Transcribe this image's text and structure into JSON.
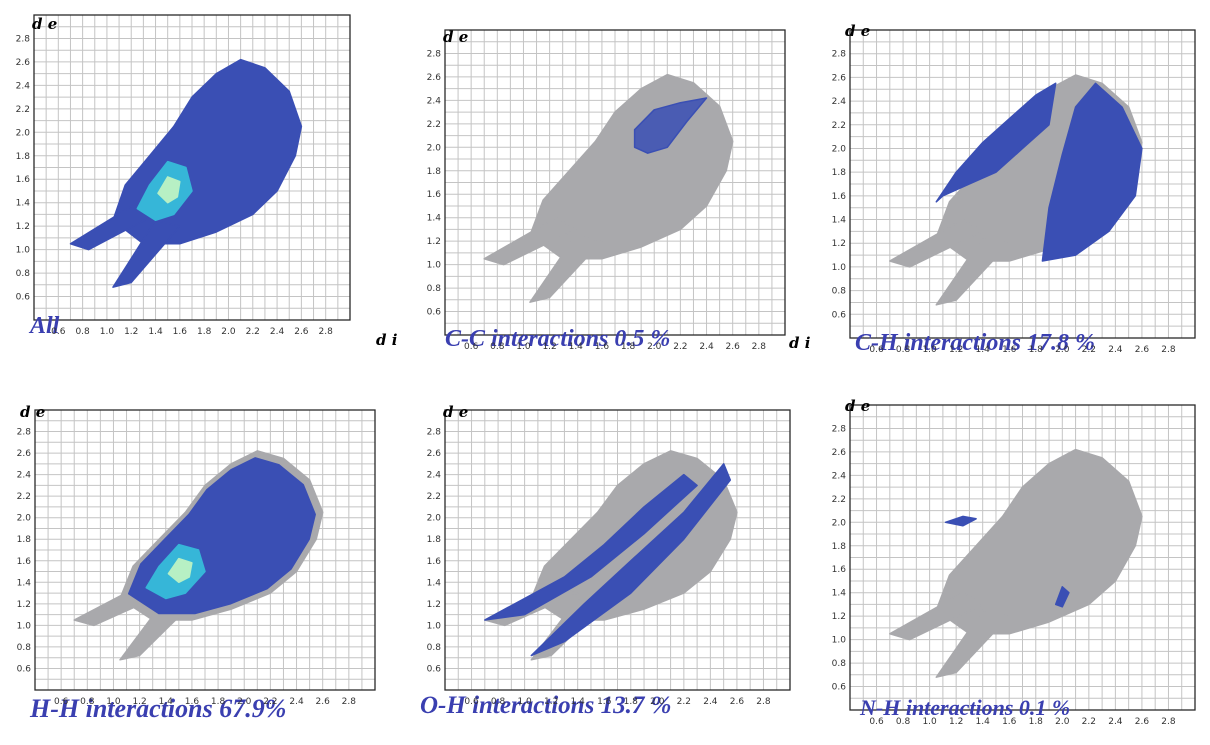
{
  "chart_data": [
    {
      "type": "heatmap",
      "caption": "All",
      "ylabel": "d e",
      "xlabel": "d i",
      "x_ticks": [
        "0.6",
        "0.8",
        "1.0",
        "1.2",
        "1.4",
        "1.6",
        "1.8",
        "2.0",
        "2.2",
        "2.4",
        "2.6",
        "2.8"
      ],
      "y_ticks": [
        "0.6",
        "0.8",
        "1.0",
        "1.2",
        "1.4",
        "1.6",
        "1.8",
        "2.0",
        "2.2",
        "2.4",
        "2.6",
        "2.8"
      ],
      "xlim": [
        0.4,
        3.0
      ],
      "ylim": [
        0.4,
        3.0
      ]
    },
    {
      "type": "heatmap",
      "caption": "C-C interactions 0.5 %",
      "ylabel": "d e",
      "xlabel": "d i",
      "x_ticks": [
        "0.6",
        "0.8",
        "1.0",
        "1.2",
        "1.4",
        "1.6",
        "1.8",
        "2.0",
        "2.2",
        "2.4",
        "2.6",
        "2.8"
      ],
      "y_ticks": [
        "0.6",
        "0.8",
        "1.0",
        "1.2",
        "1.4",
        "1.6",
        "1.8",
        "2.0",
        "2.2",
        "2.4",
        "2.6",
        "2.8"
      ],
      "xlim": [
        0.4,
        3.0
      ],
      "ylim": [
        0.4,
        3.0
      ],
      "percent": 0.5
    },
    {
      "type": "heatmap",
      "caption": "C-H interactions 17.8 %",
      "ylabel": "d e",
      "xlabel": "",
      "x_ticks": [
        "0.6",
        "0.8",
        "1.0",
        "1.2",
        "1.4",
        "1.6",
        "1.8",
        "2.0",
        "2.2",
        "2.4",
        "2.6",
        "2.8"
      ],
      "y_ticks": [
        "0.6",
        "0.8",
        "1.0",
        "1.2",
        "1.4",
        "1.6",
        "1.8",
        "2.0",
        "2.2",
        "2.4",
        "2.6",
        "2.8"
      ],
      "xlim": [
        0.4,
        3.0
      ],
      "ylim": [
        0.4,
        3.0
      ],
      "percent": 17.8
    },
    {
      "type": "heatmap",
      "caption": "H-H interactions 67.9%",
      "ylabel": "d e",
      "xlabel": "",
      "x_ticks": [
        "0.6",
        "0.8",
        "1.0",
        "1.2",
        "1.4",
        "1.6",
        "1.8",
        "2.0",
        "2.2",
        "2.4",
        "2.6",
        "2.8"
      ],
      "y_ticks": [
        "0.6",
        "0.8",
        "1.0",
        "1.2",
        "1.4",
        "1.6",
        "1.8",
        "2.0",
        "2.2",
        "2.4",
        "2.6",
        "2.8"
      ],
      "xlim": [
        0.4,
        3.0
      ],
      "ylim": [
        0.4,
        3.0
      ],
      "percent": 67.9
    },
    {
      "type": "heatmap",
      "caption": "O-H interactions 13.7 %",
      "ylabel": "d e",
      "xlabel": "",
      "x_ticks": [
        "0.6",
        "0.8",
        "1.0",
        "1.2",
        "1.4",
        "1.6",
        "1.8",
        "2.0",
        "2.2",
        "2.4",
        "2.6",
        "2.8"
      ],
      "y_ticks": [
        "0.6",
        "0.8",
        "1.0",
        "1.2",
        "1.4",
        "1.6",
        "1.8",
        "2.0",
        "2.2",
        "2.4",
        "2.6",
        "2.8"
      ],
      "xlim": [
        0.4,
        3.0
      ],
      "ylim": [
        0.4,
        3.0
      ],
      "percent": 13.7
    },
    {
      "type": "heatmap",
      "caption": "N-H interactions 0.1 %",
      "ylabel": "d e",
      "xlabel": "",
      "x_ticks": [
        "0.6",
        "0.8",
        "1.0",
        "1.2",
        "1.4",
        "1.6",
        "1.8",
        "2.0",
        "2.2",
        "2.4",
        "2.6",
        "2.8"
      ],
      "y_ticks": [
        "0.6",
        "0.8",
        "1.0",
        "1.2",
        "1.4",
        "1.6",
        "1.8",
        "2.0",
        "2.2",
        "2.4",
        "2.6",
        "2.8"
      ],
      "xlim": [
        0.4,
        3.0
      ],
      "ylim": [
        0.4,
        3.0
      ],
      "percent": 0.1
    }
  ],
  "colors": {
    "background_region": "#a9a9ac",
    "contact_region": "#3a4fb4",
    "dense_region": "#36b6d8",
    "core_region": "#b7f0c4",
    "grid": "#c4c4c4",
    "caption": "#3a3fb0"
  }
}
